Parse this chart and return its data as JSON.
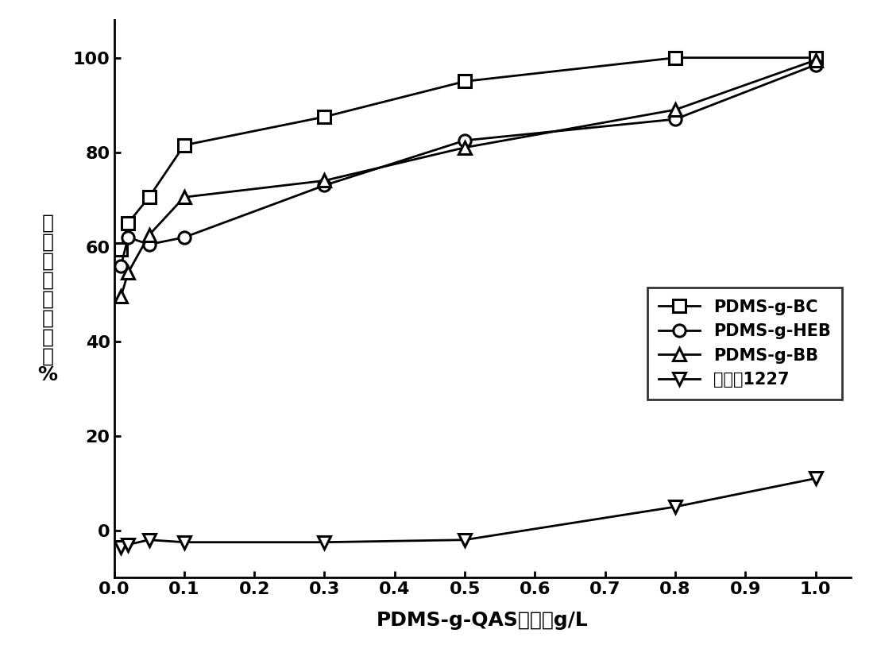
{
  "series": {
    "PDMS-g-BC": {
      "x": [
        0.01,
        0.02,
        0.05,
        0.1,
        0.3,
        0.5,
        0.8,
        1.0
      ],
      "y": [
        59.5,
        65.0,
        70.5,
        81.5,
        87.5,
        95.0,
        100.0,
        100.0
      ],
      "marker": "s",
      "label": "PDMS-g-BC"
    },
    "PDMS-g-HEB": {
      "x": [
        0.01,
        0.02,
        0.05,
        0.1,
        0.3,
        0.5,
        0.8,
        1.0
      ],
      "y": [
        56.0,
        62.0,
        60.5,
        62.0,
        73.0,
        82.5,
        87.0,
        98.5
      ],
      "marker": "o",
      "label": "PDMS-g-HEB"
    },
    "PDMS-g-BB": {
      "x": [
        0.01,
        0.02,
        0.05,
        0.1,
        0.3,
        0.5,
        0.8,
        1.0
      ],
      "y": [
        49.5,
        54.5,
        62.5,
        70.5,
        74.0,
        81.0,
        89.0,
        99.5
      ],
      "marker": "^",
      "label": "PDMS-g-BB"
    },
    "QAS1227": {
      "x": [
        0.01,
        0.02,
        0.05,
        0.1,
        0.3,
        0.5,
        0.8,
        1.0
      ],
      "y": [
        -3.5,
        -3.0,
        -2.0,
        -2.5,
        -2.5,
        -2.0,
        5.0,
        11.0
      ],
      "marker": "v",
      "label": "季銃盐1227"
    }
  },
  "line_color": "#000000",
  "marker_size": 11,
  "line_width": 2.0,
  "marker_fill": "white",
  "xlabel": "PDMS-g-QAS浓度，g/L",
  "ylabel_chars": [
    "菌",
    "核",
    "葐",
    "发",
    "抑",
    "制",
    "率",
    "，",
    "%"
  ],
  "xlim": [
    0.0,
    1.05
  ],
  "ylim": [
    -10,
    108
  ],
  "xticks": [
    0.0,
    0.1,
    0.2,
    0.3,
    0.4,
    0.5,
    0.6,
    0.7,
    0.8,
    0.9,
    1.0
  ],
  "yticks": [
    0,
    20,
    40,
    60,
    80,
    100
  ],
  "background_color": "#ffffff",
  "label_fontsize": 18,
  "tick_fontsize": 16,
  "legend_fontsize": 15
}
